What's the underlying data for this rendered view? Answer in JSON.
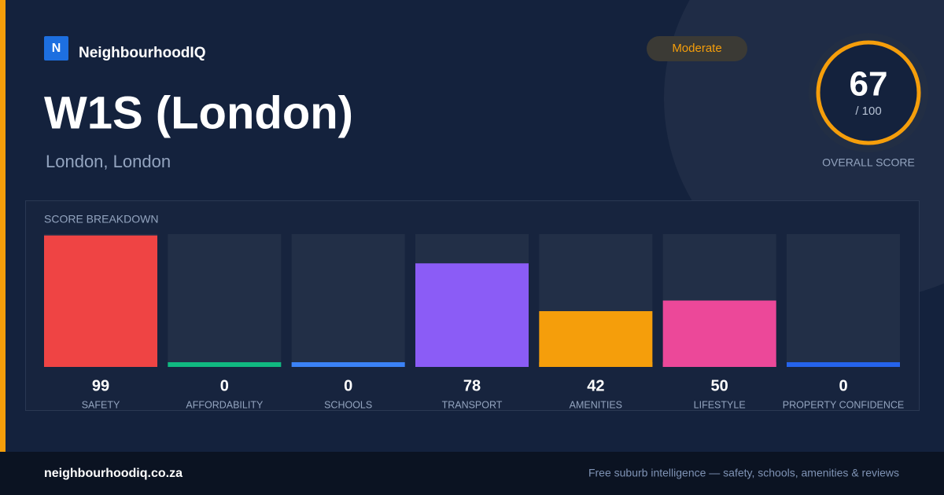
{
  "brand": {
    "logo": "N",
    "name": "NeighbourhoodIQ"
  },
  "header": {
    "title": "W1S (London)",
    "subtitle": "London, London",
    "badge": "Moderate"
  },
  "score": {
    "value": 67,
    "suffix": "/ 100",
    "label": "OVERALL SCORE"
  },
  "chart_data": {
    "type": "bar",
    "title": "SCORE BREAKDOWN",
    "categories": [
      "SAFETY",
      "AFFORDABILITY",
      "SCHOOLS",
      "TRANSPORT",
      "AMENITIES",
      "LIFESTYLE",
      "PROPERTY CONFIDENCE"
    ],
    "values": [
      99,
      0,
      0,
      78,
      42,
      50,
      0
    ],
    "colors": [
      "#ef4444",
      "#10b981",
      "#3b82f6",
      "#8b5cf6",
      "#f59e0b",
      "#ec4899",
      "#2563eb"
    ],
    "ylim": [
      0,
      100
    ]
  },
  "footer": {
    "site": "neighbourhoodiq.co.za",
    "tagline": "Free suburb intelligence — safety, schools, amenities & reviews"
  }
}
